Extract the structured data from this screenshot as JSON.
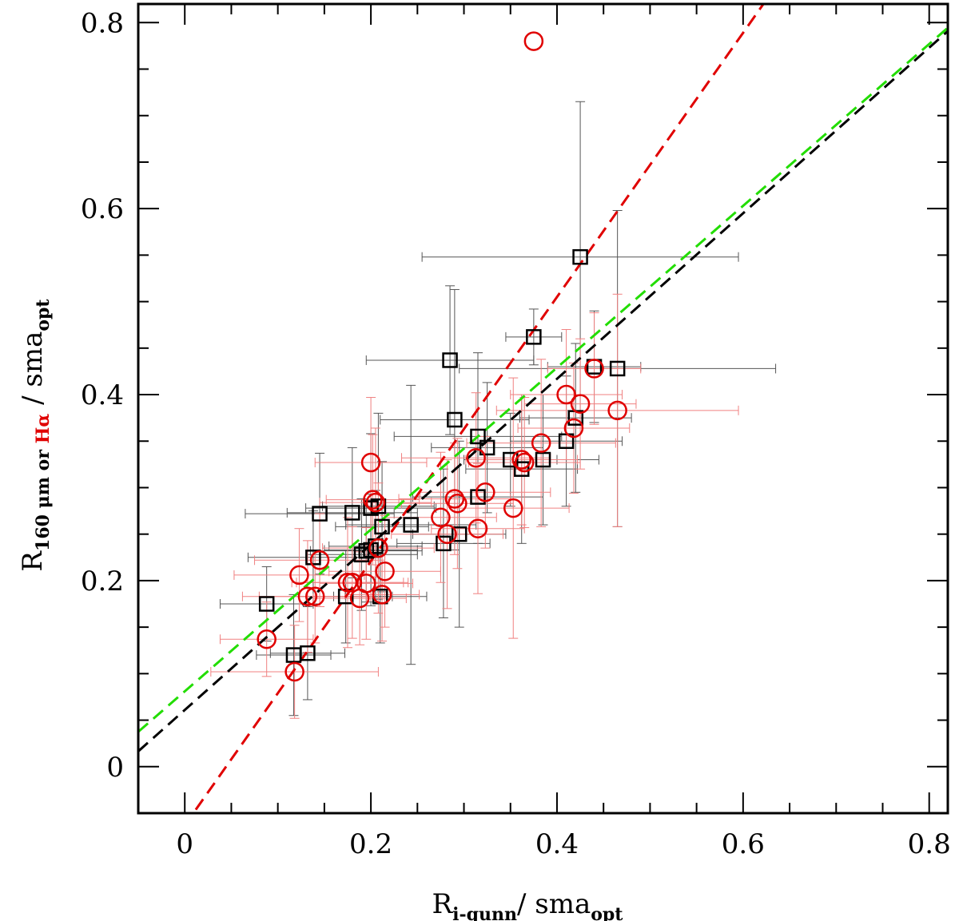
{
  "chart_data": {
    "type": "scatter",
    "title": "",
    "xlabel": {
      "main": "R",
      "sub": "i-gunn",
      "rest": "/  sma",
      "rest_sub": "opt"
    },
    "ylabel": {
      "main": "R",
      "sub1": "160 μm or ",
      "sub2": "Hα",
      "rest": "  /  sma",
      "rest_sub": "opt"
    },
    "xlim": [
      -0.05,
      0.82
    ],
    "ylim": [
      -0.05,
      0.82
    ],
    "xticks": [
      {
        "value": 0,
        "label": "0"
      },
      {
        "value": 0.2,
        "label": "0.2"
      },
      {
        "value": 0.4,
        "label": "0.4"
      },
      {
        "value": 0.6,
        "label": "0.6"
      },
      {
        "value": 0.8,
        "label": "0.8"
      }
    ],
    "yticks": [
      {
        "value": 0,
        "label": "0"
      },
      {
        "value": 0.2,
        "label": "0.2"
      },
      {
        "value": 0.4,
        "label": "0.4"
      },
      {
        "value": 0.6,
        "label": "0.6"
      },
      {
        "value": 0.8,
        "label": "0.8"
      }
    ],
    "grid": false,
    "legend": "none",
    "colors": {
      "black": "#000000",
      "red": "#e00000",
      "red_err": "#f08080",
      "black_err": "#555555",
      "green": "#22dd00"
    },
    "series": [
      {
        "marker": "square",
        "color": "#000000",
        "points": [
          {
            "x": 0.088,
            "y": 0.175,
            "xerr": 0.05,
            "yerr": 0.04
          },
          {
            "x": 0.117,
            "y": 0.12,
            "xerr": 0.04,
            "yerr": 0.065
          },
          {
            "x": 0.132,
            "y": 0.122,
            "xerr": 0.04,
            "yerr": 0.05
          },
          {
            "x": 0.138,
            "y": 0.225,
            "xerr": 0.07,
            "yerr": 0.05
          },
          {
            "x": 0.145,
            "y": 0.272,
            "xerr": 0.08,
            "yerr": 0.065
          },
          {
            "x": 0.173,
            "y": 0.183,
            "xerr": 0.05,
            "yerr": 0.05
          },
          {
            "x": 0.18,
            "y": 0.273,
            "xerr": 0.07,
            "yerr": 0.07
          },
          {
            "x": 0.19,
            "y": 0.228,
            "xerr": 0.06,
            "yerr": 0.06
          },
          {
            "x": 0.195,
            "y": 0.232,
            "xerr": 0.06,
            "yerr": 0.055
          },
          {
            "x": 0.2,
            "y": 0.233,
            "xerr": 0.05,
            "yerr": 0.06
          },
          {
            "x": 0.2,
            "y": 0.278,
            "xerr": 0.07,
            "yerr": 0.08
          },
          {
            "x": 0.205,
            "y": 0.237,
            "xerr": 0.05,
            "yerr": 0.06
          },
          {
            "x": 0.208,
            "y": 0.28,
            "xerr": 0.06,
            "yerr": 0.1
          },
          {
            "x": 0.21,
            "y": 0.183,
            "xerr": 0.05,
            "yerr": 0.05
          },
          {
            "x": 0.212,
            "y": 0.258,
            "xerr": 0.05,
            "yerr": 0.07
          },
          {
            "x": 0.243,
            "y": 0.26,
            "xerr": 0.07,
            "yerr": 0.15
          },
          {
            "x": 0.278,
            "y": 0.24,
            "xerr": 0.05,
            "yerr": 0.08
          },
          {
            "x": 0.285,
            "y": 0.437,
            "xerr": 0.09,
            "yerr": 0.08
          },
          {
            "x": 0.29,
            "y": 0.373,
            "xerr": 0.08,
            "yerr": 0.14
          },
          {
            "x": 0.295,
            "y": 0.25,
            "xerr": 0.05,
            "yerr": 0.1
          },
          {
            "x": 0.315,
            "y": 0.355,
            "xerr": 0.09,
            "yerr": 0.09
          },
          {
            "x": 0.315,
            "y": 0.29,
            "xerr": 0.07,
            "yerr": 0.05
          },
          {
            "x": 0.325,
            "y": 0.343,
            "xerr": 0.06,
            "yerr": 0.07
          },
          {
            "x": 0.35,
            "y": 0.33,
            "xerr": 0.05,
            "yerr": 0.05
          },
          {
            "x": 0.362,
            "y": 0.32,
            "xerr": 0.06,
            "yerr": 0.08
          },
          {
            "x": 0.375,
            "y": 0.462,
            "xerr": 0.03,
            "yerr": 0.03
          },
          {
            "x": 0.385,
            "y": 0.33,
            "xerr": 0.06,
            "yerr": 0.07
          },
          {
            "x": 0.41,
            "y": 0.35,
            "xerr": 0.06,
            "yerr": 0.07
          },
          {
            "x": 0.42,
            "y": 0.375,
            "xerr": 0.06,
            "yerr": 0.08
          },
          {
            "x": 0.425,
            "y": 0.548,
            "xerr": 0.17,
            "yerr": 0.167
          },
          {
            "x": 0.44,
            "y": 0.43,
            "xerr": 0.05,
            "yerr": 0.06
          },
          {
            "x": 0.465,
            "y": 0.428,
            "xerr": 0.17,
            "yerr": 0.17
          }
        ]
      },
      {
        "marker": "circle",
        "color": "#e00000",
        "points": [
          {
            "x": 0.088,
            "y": 0.137,
            "xerr": 0.05,
            "yerr": 0.04
          },
          {
            "x": 0.118,
            "y": 0.102,
            "xerr": 0.09,
            "yerr": 0.05
          },
          {
            "x": 0.123,
            "y": 0.206,
            "xerr": 0.07,
            "yerr": 0.05
          },
          {
            "x": 0.132,
            "y": 0.183,
            "xerr": 0.07,
            "yerr": 0.06
          },
          {
            "x": 0.14,
            "y": 0.183,
            "xerr": 0.06,
            "yerr": 0.05
          },
          {
            "x": 0.145,
            "y": 0.222,
            "xerr": 0.07,
            "yerr": 0.05
          },
          {
            "x": 0.175,
            "y": 0.198,
            "xerr": 0.06,
            "yerr": 0.07
          },
          {
            "x": 0.18,
            "y": 0.198,
            "xerr": 0.06,
            "yerr": 0.06
          },
          {
            "x": 0.188,
            "y": 0.181,
            "xerr": 0.05,
            "yerr": 0.05
          },
          {
            "x": 0.195,
            "y": 0.197,
            "xerr": 0.05,
            "yerr": 0.06
          },
          {
            "x": 0.2,
            "y": 0.327,
            "xerr": 0.06,
            "yerr": 0.07
          },
          {
            "x": 0.202,
            "y": 0.287,
            "xerr": 0.05,
            "yerr": 0.07
          },
          {
            "x": 0.205,
            "y": 0.284,
            "xerr": 0.06,
            "yerr": 0.08
          },
          {
            "x": 0.208,
            "y": 0.235,
            "xerr": 0.06,
            "yerr": 0.07
          },
          {
            "x": 0.212,
            "y": 0.185,
            "xerr": 0.04,
            "yerr": 0.05
          },
          {
            "x": 0.215,
            "y": 0.21,
            "xerr": 0.06,
            "yerr": 0.06
          },
          {
            "x": 0.275,
            "y": 0.268,
            "xerr": 0.06,
            "yerr": 0.07
          },
          {
            "x": 0.282,
            "y": 0.25,
            "xerr": 0.06,
            "yerr": 0.08
          },
          {
            "x": 0.29,
            "y": 0.288,
            "xerr": 0.06,
            "yerr": 0.06
          },
          {
            "x": 0.293,
            "y": 0.283,
            "xerr": 0.06,
            "yerr": 0.07
          },
          {
            "x": 0.313,
            "y": 0.332,
            "xerr": 0.08,
            "yerr": 0.07
          },
          {
            "x": 0.315,
            "y": 0.256,
            "xerr": 0.05,
            "yerr": 0.07
          },
          {
            "x": 0.323,
            "y": 0.295,
            "xerr": 0.07,
            "yerr": 0.06
          },
          {
            "x": 0.353,
            "y": 0.278,
            "xerr": 0.06,
            "yerr": 0.14
          },
          {
            "x": 0.362,
            "y": 0.33,
            "xerr": 0.06,
            "yerr": 0.07
          },
          {
            "x": 0.365,
            "y": 0.327,
            "xerr": 0.06,
            "yerr": 0.07
          },
          {
            "x": 0.375,
            "y": 0.78,
            "xerr": 0.0,
            "yerr": 0.0
          },
          {
            "x": 0.383,
            "y": 0.348,
            "xerr": 0.08,
            "yerr": 0.09
          },
          {
            "x": 0.41,
            "y": 0.4,
            "xerr": 0.06,
            "yerr": 0.07
          },
          {
            "x": 0.418,
            "y": 0.364,
            "xerr": 0.06,
            "yerr": 0.07
          },
          {
            "x": 0.425,
            "y": 0.39,
            "xerr": 0.06,
            "yerr": 0.07
          },
          {
            "x": 0.44,
            "y": 0.428,
            "xerr": 0.05,
            "yerr": 0.06
          },
          {
            "x": 0.465,
            "y": 0.383,
            "xerr": 0.13,
            "yerr": 0.125
          }
        ]
      }
    ],
    "fits": [
      {
        "color": "#e00000",
        "slope": 1.42,
        "intercept": -0.063
      },
      {
        "color": "#000000",
        "slope": 0.89,
        "intercept": 0.061
      },
      {
        "color": "#22dd00",
        "slope": 0.87,
        "intercept": 0.081
      }
    ]
  }
}
